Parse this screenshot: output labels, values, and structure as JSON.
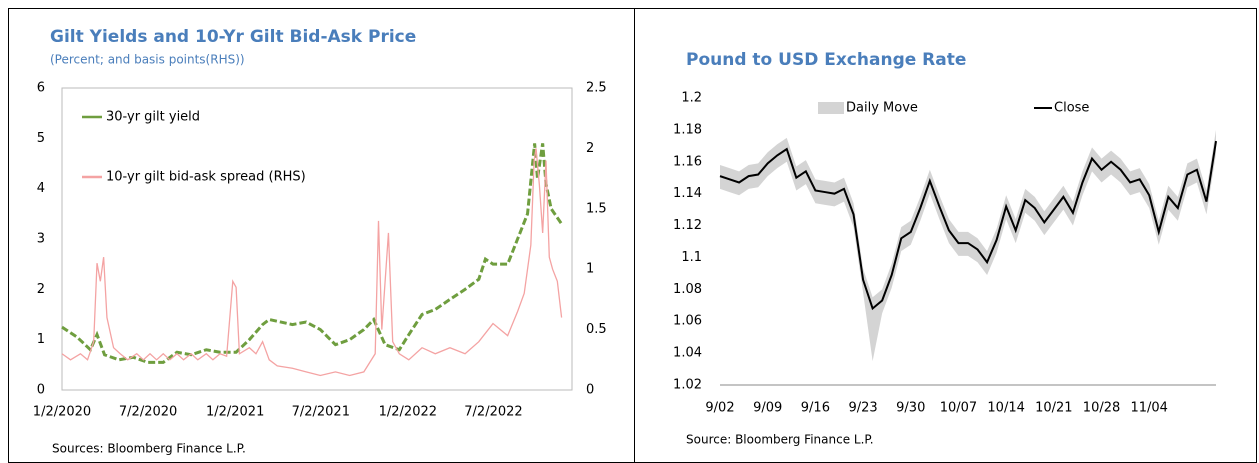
{
  "chart_data": [
    {
      "type": "line",
      "title": "Gilt Yields and 10-Yr Gilt Bid-Ask Price",
      "subtitle": "(Percent; and basis points(RHS))",
      "source": "Sources: Bloomberg Finance L.P.",
      "xlim": [
        "1/2/2020",
        "12/15/2022"
      ],
      "xticks": [
        "1/2/2020",
        "7/2/2020",
        "1/2/2021",
        "7/2/2021",
        "1/2/2022",
        "7/2/2022"
      ],
      "ylim": [
        0,
        6
      ],
      "yticks": [
        0,
        1,
        2,
        3,
        4,
        5,
        6
      ],
      "y2lim": [
        0,
        2.5
      ],
      "y2ticks": [
        0,
        0.5,
        1,
        1.5,
        2,
        2.5
      ],
      "legend": "upper left",
      "series": [
        {
          "name": "30-yr gilt yield",
          "color": "#6f9e3f",
          "axis": "y",
          "x": [
            "1/2/2020",
            "2/3/2020",
            "3/2/2020",
            "3/16/2020",
            "4/1/2020",
            "5/1/2020",
            "6/1/2020",
            "7/1/2020",
            "8/3/2020",
            "9/1/2020",
            "10/1/2020",
            "11/2/2020",
            "12/1/2020",
            "1/4/2021",
            "2/1/2021",
            "3/1/2021",
            "3/15/2021",
            "5/3/2021",
            "6/1/2021",
            "7/1/2021",
            "8/2/2021",
            "9/1/2021",
            "10/1/2021",
            "10/22/2021",
            "11/15/2021",
            "12/15/2021",
            "1/4/2022",
            "2/1/2022",
            "3/1/2022",
            "4/1/2022",
            "5/3/2022",
            "6/1/2022",
            "6/15/2022",
            "7/1/2022",
            "8/1/2022",
            "8/22/2022",
            "9/12/2022",
            "9/27/2022",
            "10/3/2022",
            "10/14/2022",
            "10/21/2022",
            "11/1/2022",
            "11/23/2022"
          ],
          "values": [
            1.25,
            1.05,
            0.8,
            1.1,
            0.7,
            0.6,
            0.65,
            0.55,
            0.55,
            0.75,
            0.7,
            0.8,
            0.75,
            0.75,
            1.0,
            1.3,
            1.4,
            1.3,
            1.35,
            1.2,
            0.9,
            1.0,
            1.2,
            1.4,
            0.9,
            0.8,
            1.1,
            1.5,
            1.6,
            1.8,
            2.0,
            2.2,
            2.6,
            2.5,
            2.5,
            3.0,
            3.5,
            4.9,
            4.2,
            4.9,
            4.1,
            3.6,
            3.3
          ]
        },
        {
          "name": "10-yr gilt bid-ask spread (RHS)",
          "color": "#f4a3a3",
          "axis": "y2",
          "x": [
            "1/2/2020",
            "1/20/2020",
            "2/10/2020",
            "2/25/2020",
            "3/9/2020",
            "3/16/2020",
            "3/23/2020",
            "3/30/2020",
            "4/6/2020",
            "4/20/2020",
            "5/4/2020",
            "5/20/2020",
            "6/8/2020",
            "6/22/2020",
            "7/6/2020",
            "7/20/2020",
            "8/3/2020",
            "8/17/2020",
            "9/1/2020",
            "9/15/2020",
            "10/1/2020",
            "10/15/2020",
            "11/2/2020",
            "11/16/2020",
            "12/1/2020",
            "12/15/2020",
            "12/28/2020",
            "1/4/2021",
            "1/11/2021",
            "2/1/2021",
            "2/15/2021",
            "3/1/2021",
            "3/15/2021",
            "4/1/2021",
            "5/3/2021",
            "6/1/2021",
            "7/1/2021",
            "8/2/2021",
            "9/1/2021",
            "10/1/2021",
            "10/25/2021",
            "11/1/2021",
            "11/8/2021",
            "11/22/2021",
            "12/1/2021",
            "12/15/2021",
            "1/4/2022",
            "2/1/2022",
            "3/1/2022",
            "4/1/2022",
            "5/3/2022",
            "6/1/2022",
            "7/1/2022",
            "8/1/2022",
            "8/22/2022",
            "9/5/2022",
            "9/19/2022",
            "9/26/2022",
            "9/30/2022",
            "10/7/2022",
            "10/14/2022",
            "10/21/2022",
            "10/28/2022",
            "11/4/2022",
            "11/14/2022",
            "11/23/2022"
          ],
          "values": [
            0.3,
            0.25,
            0.3,
            0.25,
            0.4,
            1.05,
            0.9,
            1.1,
            0.6,
            0.35,
            0.3,
            0.25,
            0.3,
            0.25,
            0.3,
            0.25,
            0.3,
            0.25,
            0.3,
            0.25,
            0.3,
            0.25,
            0.3,
            0.25,
            0.3,
            0.28,
            0.9,
            0.85,
            0.3,
            0.35,
            0.3,
            0.4,
            0.25,
            0.2,
            0.18,
            0.15,
            0.12,
            0.15,
            0.12,
            0.15,
            0.3,
            1.4,
            0.5,
            1.3,
            0.4,
            0.3,
            0.25,
            0.35,
            0.3,
            0.35,
            0.3,
            0.4,
            0.55,
            0.45,
            0.65,
            0.8,
            1.2,
            1.9,
            2.0,
            1.7,
            1.3,
            1.9,
            1.1,
            1.0,
            0.9,
            0.6
          ]
        }
      ]
    },
    {
      "type": "line",
      "title": "Pound to USD Exchange Rate",
      "source": "Source: Bloomberg Finance L.P.",
      "categories": [
        "9/02",
        null,
        null,
        null,
        null,
        "9/09",
        null,
        null,
        null,
        null,
        "9/16",
        null,
        null,
        null,
        null,
        "9/23",
        null,
        null,
        null,
        null,
        "9/30",
        null,
        null,
        null,
        null,
        "10/07",
        null,
        null,
        null,
        null,
        "10/14",
        null,
        null,
        null,
        null,
        "10/21",
        null,
        null,
        null,
        null,
        "10/28",
        null,
        null,
        null,
        null,
        "11/04",
        null,
        null,
        null,
        null,
        null,
        null,
        null
      ],
      "ylim": [
        1.02,
        1.2
      ],
      "yticks": [
        1.02,
        1.04,
        1.06,
        1.08,
        1.1,
        1.12,
        1.14,
        1.16,
        1.18,
        1.2
      ],
      "legend": "top",
      "series": [
        {
          "name": "Daily Move",
          "color": "#d4d4d4",
          "high": [
            1.158,
            1.156,
            1.154,
            1.158,
            1.159,
            1.166,
            1.171,
            1.175,
            1.157,
            1.161,
            1.149,
            1.148,
            1.147,
            1.15,
            1.134,
            1.093,
            1.075,
            1.08,
            1.096,
            1.119,
            1.123,
            1.138,
            1.155,
            1.139,
            1.124,
            1.116,
            1.116,
            1.112,
            1.104,
            1.118,
            1.139,
            1.124,
            1.143,
            1.138,
            1.129,
            1.137,
            1.145,
            1.135,
            1.154,
            1.169,
            1.162,
            1.167,
            1.162,
            1.154,
            1.156,
            1.146,
            1.123,
            1.145,
            1.138,
            1.159,
            1.162,
            1.142,
            1.18
          ],
          "low": [
            1.143,
            1.141,
            1.139,
            1.143,
            1.144,
            1.151,
            1.156,
            1.16,
            1.142,
            1.146,
            1.134,
            1.133,
            1.132,
            1.135,
            1.119,
            1.078,
            1.035,
            1.065,
            1.081,
            1.104,
            1.108,
            1.123,
            1.14,
            1.124,
            1.109,
            1.101,
            1.101,
            1.097,
            1.089,
            1.103,
            1.124,
            1.109,
            1.128,
            1.123,
            1.114,
            1.122,
            1.13,
            1.12,
            1.139,
            1.154,
            1.147,
            1.152,
            1.147,
            1.139,
            1.141,
            1.131,
            1.108,
            1.13,
            1.123,
            1.144,
            1.147,
            1.127,
            1.165
          ]
        },
        {
          "name": "Close",
          "color": "#000000",
          "values": [
            1.151,
            1.149,
            1.147,
            1.151,
            1.152,
            1.159,
            1.164,
            1.168,
            1.15,
            1.154,
            1.142,
            1.141,
            1.14,
            1.143,
            1.127,
            1.086,
            1.068,
            1.073,
            1.089,
            1.112,
            1.116,
            1.131,
            1.148,
            1.132,
            1.117,
            1.109,
            1.109,
            1.105,
            1.097,
            1.111,
            1.132,
            1.117,
            1.136,
            1.131,
            1.122,
            1.13,
            1.138,
            1.128,
            1.147,
            1.162,
            1.155,
            1.16,
            1.155,
            1.147,
            1.149,
            1.139,
            1.116,
            1.138,
            1.131,
            1.152,
            1.155,
            1.135,
            1.173
          ]
        }
      ]
    }
  ]
}
